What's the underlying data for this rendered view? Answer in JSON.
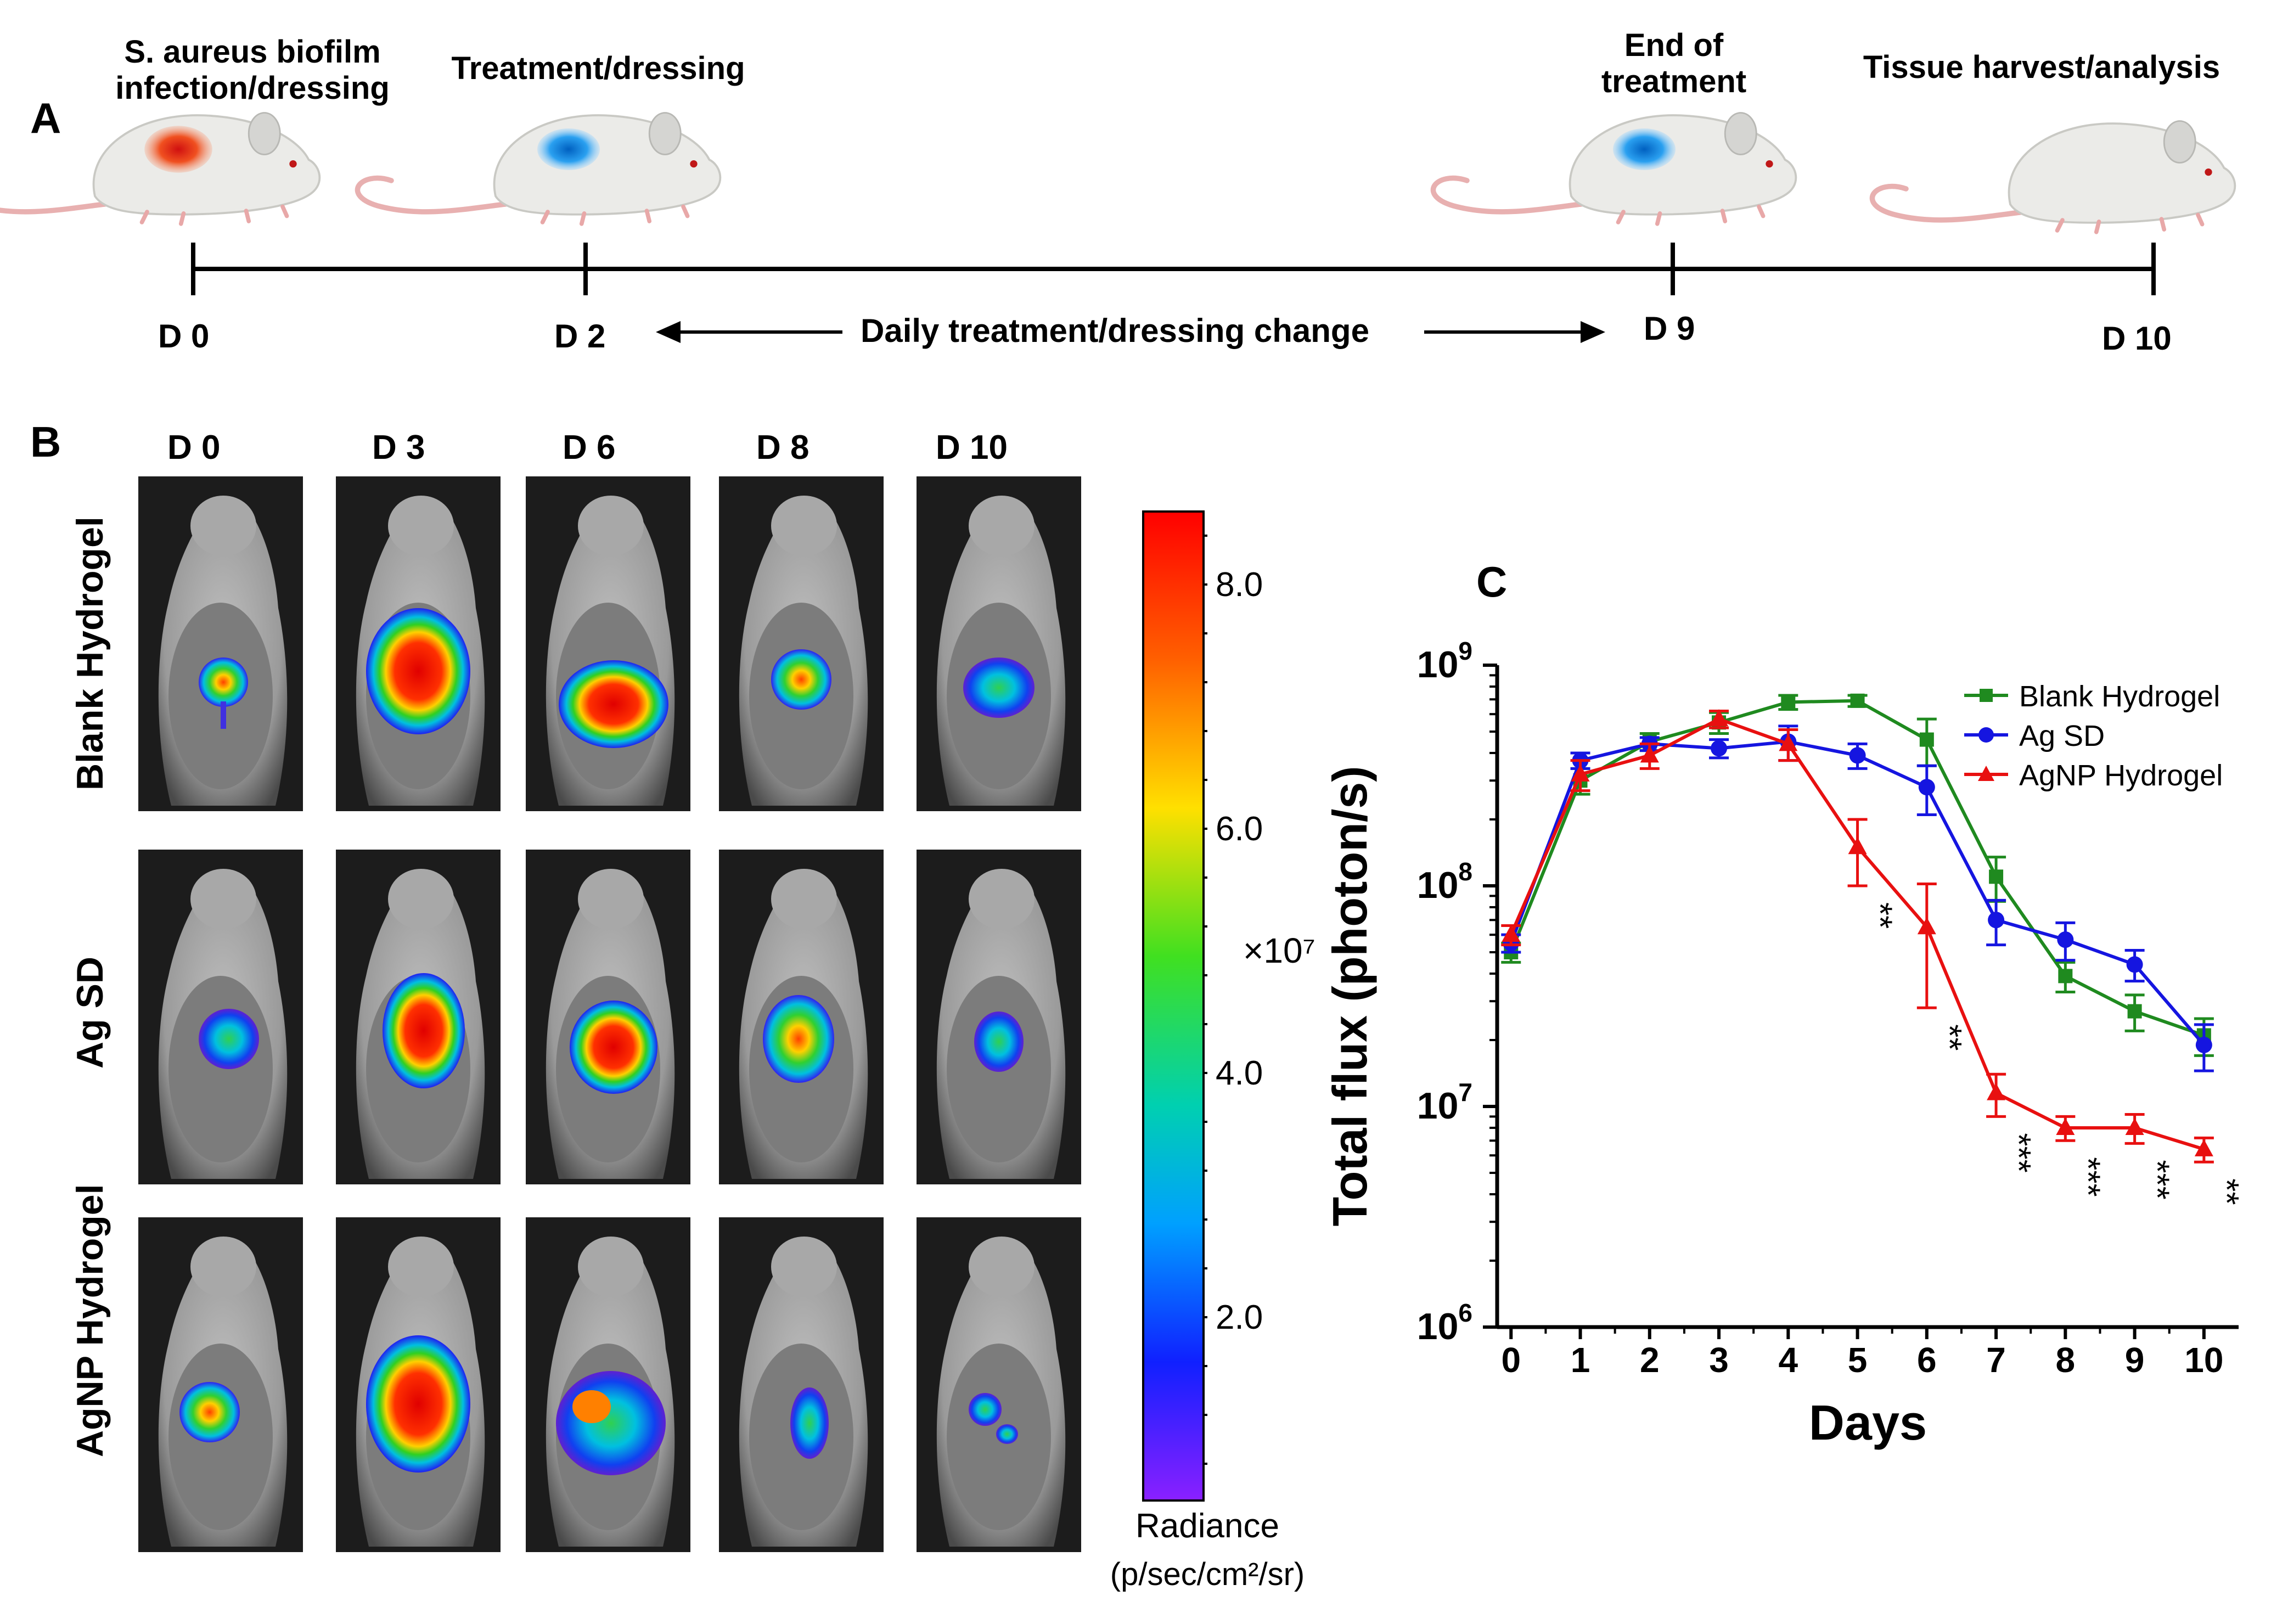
{
  "panel_a": {
    "letter": "A",
    "events": [
      {
        "label_lines": [
          "S. aureus biofilm",
          "infection/dressing"
        ],
        "day": "D 0"
      },
      {
        "label_lines": [
          "Treatment/dressing"
        ],
        "day": "D 2"
      },
      {
        "label_lines": [
          "End of",
          "treatment"
        ],
        "day": "D 9"
      },
      {
        "label_lines": [
          "Tissue harvest/analysis"
        ],
        "day": "D 10"
      }
    ],
    "arrow_label": "Daily treatment/dressing change"
  },
  "panel_b": {
    "letter": "B",
    "columns": [
      "D 0",
      "D 3",
      "D 6",
      "D 8",
      "D 10"
    ],
    "rows": [
      "Blank Hydrogel",
      "Ag SD",
      "AgNP Hydrogel"
    ],
    "colorbar": {
      "ticks": [
        "8.0",
        "6.0",
        "4.0",
        "2.0"
      ],
      "multiplier": "×10⁷",
      "title": "Radiance",
      "units": "(p/sec/cm²/sr)"
    }
  },
  "chart_data": {
    "panel_letter": "C",
    "type": "line",
    "xlabel": "Days",
    "ylabel": "Total flux (photon/s)",
    "yscale": "log",
    "ylim": [
      1000000,
      1000000000
    ],
    "xlim": [
      -0.2,
      10.5
    ],
    "x": [
      0,
      1,
      2,
      3,
      4,
      5,
      6,
      7,
      8,
      9,
      10
    ],
    "x_tick_labels": [
      "0",
      "1",
      "2",
      "3",
      "4",
      "5",
      "6",
      "7",
      "8",
      "9",
      "10"
    ],
    "y_tick_labels": [
      {
        "base": "10",
        "exp": "9",
        "value": 1000000000
      },
      {
        "base": "10",
        "exp": "8",
        "value": 100000000
      },
      {
        "base": "10",
        "exp": "7",
        "value": 10000000
      },
      {
        "base": "10",
        "exp": "6",
        "value": 1000000
      }
    ],
    "legend_position": "top-right",
    "series": [
      {
        "name": "Blank Hydrogel",
        "color": "#1f8a1f",
        "marker": "square",
        "values": [
          50000000,
          300000000,
          450000000,
          550000000,
          680000000,
          690000000,
          460000000,
          110000000,
          39000000,
          27000000,
          21000000
        ],
        "err": [
          5000000,
          40000000,
          40000000,
          60000000,
          50000000,
          40000000,
          110000000,
          25000000,
          6000000,
          5000000,
          4000000
        ]
      },
      {
        "name": "Ag SD",
        "color": "#1515e0",
        "marker": "circle",
        "values": [
          55000000,
          370000000,
          440000000,
          420000000,
          450000000,
          390000000,
          280000000,
          70000000,
          57000000,
          44000000,
          19000000
        ],
        "err": [
          5000000,
          30000000,
          30000000,
          40000000,
          80000000,
          50000000,
          70000000,
          16000000,
          11000000,
          7000000,
          4500000
        ]
      },
      {
        "name": "AgNP Hydrogel",
        "color": "#e81010",
        "marker": "triangle",
        "values": [
          60000000,
          320000000,
          390000000,
          570000000,
          440000000,
          150000000,
          65000000,
          11500000,
          8000000,
          8000000,
          6400000
        ],
        "err": [
          6000000,
          50000000,
          50000000,
          50000000,
          70000000,
          50000000,
          37000000,
          2500000,
          1000000,
          1200000,
          800000
        ]
      }
    ],
    "annotations": [
      {
        "x": 5,
        "text": "**"
      },
      {
        "x": 6,
        "text": "**"
      },
      {
        "x": 7,
        "text": "***"
      },
      {
        "x": 8,
        "text": "***"
      },
      {
        "x": 9,
        "text": "***"
      },
      {
        "x": 10,
        "text": "**"
      }
    ]
  }
}
